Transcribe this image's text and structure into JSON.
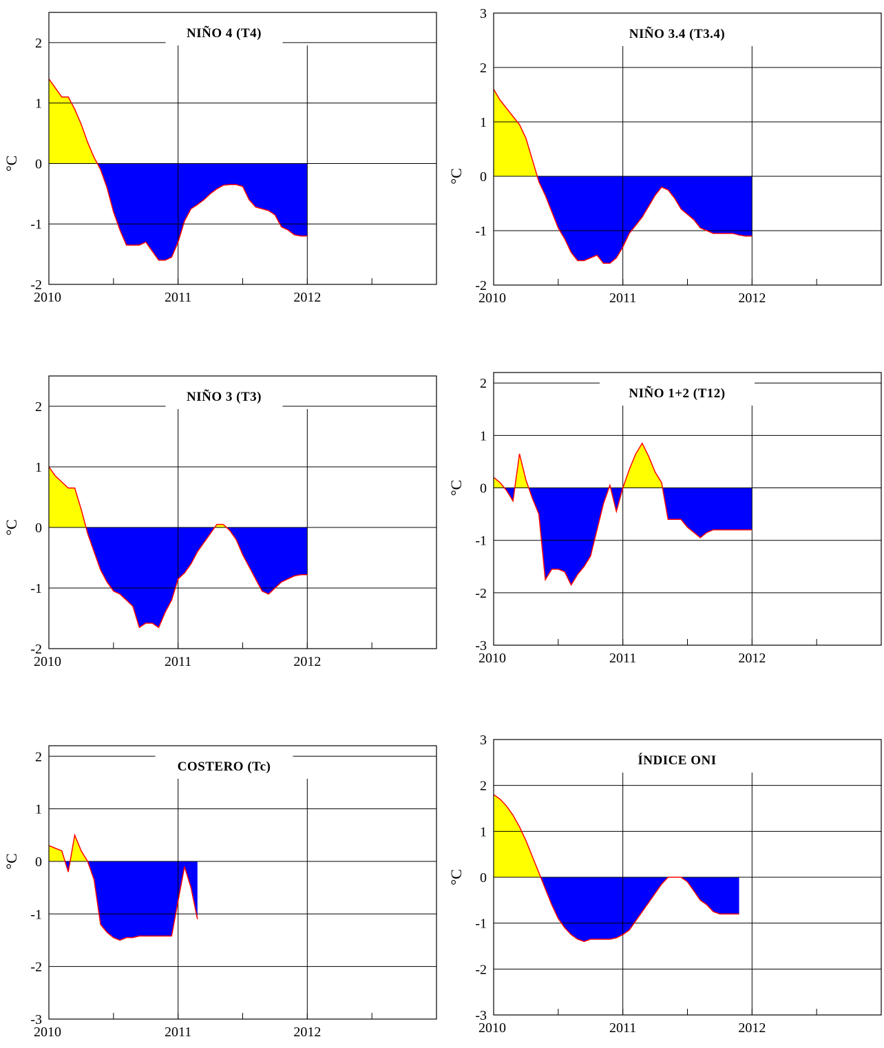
{
  "colors": {
    "positive_fill": "#ffff00",
    "negative_fill": "#0000ff",
    "line": "#ff0000",
    "grid": "#000000",
    "background": "#ffffff"
  },
  "chart_data": [
    {
      "type": "area",
      "title": "NIÑO 4 (T4)",
      "ylabel": "°C",
      "xlabel": "",
      "xlim": [
        2010,
        2013
      ],
      "ylim": [
        -2,
        2.5
      ],
      "x_ticks": [
        2010,
        2011,
        2012
      ],
      "y_ticks": [
        -2,
        -1,
        0,
        1,
        2
      ],
      "grid": true,
      "x": [
        2010.0,
        2010.05,
        2010.1,
        2010.15,
        2010.2,
        2010.25,
        2010.3,
        2010.35,
        2010.4,
        2010.45,
        2010.5,
        2010.55,
        2010.6,
        2010.65,
        2010.7,
        2010.75,
        2010.8,
        2010.85,
        2010.9,
        2010.95,
        2011.0,
        2011.05,
        2011.1,
        2011.15,
        2011.2,
        2011.25,
        2011.3,
        2011.35,
        2011.4,
        2011.45,
        2011.5,
        2011.55,
        2011.6,
        2011.65,
        2011.7,
        2011.75,
        2011.8,
        2011.85,
        2011.9,
        2011.95,
        2012.0
      ],
      "y": [
        1.4,
        1.25,
        1.1,
        1.1,
        0.9,
        0.65,
        0.35,
        0.1,
        -0.1,
        -0.4,
        -0.8,
        -1.1,
        -1.35,
        -1.35,
        -1.35,
        -1.3,
        -1.45,
        -1.6,
        -1.6,
        -1.55,
        -1.3,
        -0.95,
        -0.75,
        -0.68,
        -0.6,
        -0.5,
        -0.42,
        -0.36,
        -0.35,
        -0.35,
        -0.38,
        -0.6,
        -0.72,
        -0.75,
        -0.78,
        -0.85,
        -1.05,
        -1.1,
        -1.18,
        -1.2,
        -1.2
      ]
    },
    {
      "type": "area",
      "title": "NIÑO 3.4 (T3.4)",
      "ylabel": "°C",
      "xlabel": "",
      "xlim": [
        2010,
        2013
      ],
      "ylim": [
        -2,
        3
      ],
      "x_ticks": [
        2010,
        2011,
        2012
      ],
      "y_ticks": [
        -2,
        -1,
        0,
        1,
        2,
        3
      ],
      "grid": true,
      "x": [
        2010.0,
        2010.05,
        2010.1,
        2010.15,
        2010.2,
        2010.25,
        2010.3,
        2010.35,
        2010.4,
        2010.45,
        2010.5,
        2010.55,
        2010.6,
        2010.65,
        2010.7,
        2010.75,
        2010.8,
        2010.85,
        2010.9,
        2010.95,
        2011.0,
        2011.05,
        2011.1,
        2011.15,
        2011.2,
        2011.25,
        2011.3,
        2011.35,
        2011.4,
        2011.45,
        2011.5,
        2011.55,
        2011.6,
        2011.65,
        2011.7,
        2011.75,
        2011.8,
        2011.85,
        2011.9,
        2011.95,
        2012.0
      ],
      "y": [
        1.6,
        1.4,
        1.25,
        1.1,
        0.95,
        0.7,
        0.3,
        -0.1,
        -0.35,
        -0.65,
        -0.95,
        -1.15,
        -1.4,
        -1.55,
        -1.55,
        -1.5,
        -1.45,
        -1.6,
        -1.6,
        -1.5,
        -1.3,
        -1.05,
        -0.9,
        -0.75,
        -0.55,
        -0.35,
        -0.2,
        -0.25,
        -0.4,
        -0.6,
        -0.7,
        -0.8,
        -0.95,
        -1.0,
        -1.05,
        -1.05,
        -1.05,
        -1.05,
        -1.08,
        -1.1,
        -1.1
      ]
    },
    {
      "type": "area",
      "title": "NIÑO 3 (T3)",
      "ylabel": "°C",
      "xlabel": "",
      "xlim": [
        2010,
        2013
      ],
      "ylim": [
        -2,
        2.5
      ],
      "x_ticks": [
        2010,
        2011,
        2012
      ],
      "y_ticks": [
        -2,
        -1,
        0,
        1,
        2
      ],
      "grid": true,
      "x": [
        2010.0,
        2010.05,
        2010.1,
        2010.15,
        2010.2,
        2010.25,
        2010.3,
        2010.35,
        2010.4,
        2010.45,
        2010.5,
        2010.55,
        2010.6,
        2010.65,
        2010.7,
        2010.75,
        2010.8,
        2010.85,
        2010.9,
        2010.95,
        2011.0,
        2011.05,
        2011.1,
        2011.15,
        2011.2,
        2011.25,
        2011.3,
        2011.35,
        2011.4,
        2011.45,
        2011.5,
        2011.55,
        2011.6,
        2011.65,
        2011.7,
        2011.75,
        2011.8,
        2011.85,
        2011.9,
        2011.95,
        2012.0
      ],
      "y": [
        1.0,
        0.85,
        0.75,
        0.65,
        0.65,
        0.3,
        -0.1,
        -0.4,
        -0.7,
        -0.9,
        -1.05,
        -1.1,
        -1.2,
        -1.3,
        -1.65,
        -1.58,
        -1.58,
        -1.65,
        -1.4,
        -1.2,
        -0.85,
        -0.75,
        -0.6,
        -0.4,
        -0.25,
        -0.1,
        0.05,
        0.05,
        -0.05,
        -0.2,
        -0.45,
        -0.65,
        -0.85,
        -1.05,
        -1.1,
        -1.0,
        -0.9,
        -0.85,
        -0.8,
        -0.78,
        -0.78
      ]
    },
    {
      "type": "area",
      "title": "NIÑO 1+2 (T12)",
      "ylabel": "°C",
      "xlabel": "",
      "xlim": [
        2010,
        2013
      ],
      "ylim": [
        -3,
        2.2
      ],
      "x_ticks": [
        2010,
        2011,
        2012
      ],
      "y_ticks": [
        -3,
        -2,
        -1,
        0,
        1,
        2
      ],
      "grid": true,
      "x": [
        2010.0,
        2010.05,
        2010.1,
        2010.15,
        2010.2,
        2010.25,
        2010.3,
        2010.35,
        2010.4,
        2010.45,
        2010.5,
        2010.55,
        2010.6,
        2010.65,
        2010.7,
        2010.75,
        2010.8,
        2010.85,
        2010.9,
        2010.95,
        2011.0,
        2011.05,
        2011.1,
        2011.15,
        2011.2,
        2011.25,
        2011.3,
        2011.35,
        2011.4,
        2011.45,
        2011.5,
        2011.55,
        2011.6,
        2011.65,
        2011.7,
        2011.75,
        2011.8,
        2011.85,
        2011.9,
        2011.95,
        2012.0
      ],
      "y": [
        0.2,
        0.1,
        -0.05,
        -0.25,
        0.65,
        0.15,
        -0.2,
        -0.5,
        -1.75,
        -1.55,
        -1.55,
        -1.6,
        -1.85,
        -1.65,
        -1.5,
        -1.3,
        -0.8,
        -0.3,
        0.05,
        -0.45,
        0.0,
        0.35,
        0.65,
        0.85,
        0.6,
        0.3,
        0.1,
        -0.6,
        -0.6,
        -0.6,
        -0.75,
        -0.85,
        -0.95,
        -0.85,
        -0.8,
        -0.8,
        -0.8,
        -0.8,
        -0.8,
        -0.8,
        -0.8
      ]
    },
    {
      "type": "area",
      "title": "COSTERO (Tc)",
      "ylabel": "°C",
      "xlabel": "",
      "xlim": [
        2010,
        2013
      ],
      "ylim": [
        -3,
        2.2
      ],
      "x_ticks": [
        2010,
        2011,
        2012
      ],
      "y_ticks": [
        -3,
        -2,
        -1,
        0,
        1,
        2
      ],
      "grid": true,
      "x": [
        2010.0,
        2010.05,
        2010.1,
        2010.15,
        2010.2,
        2010.25,
        2010.3,
        2010.35,
        2010.4,
        2010.45,
        2010.5,
        2010.55,
        2010.6,
        2010.65,
        2010.7,
        2010.75,
        2010.8,
        2010.85,
        2010.9,
        2010.95,
        2011.0,
        2011.05,
        2011.1,
        2011.15
      ],
      "y": [
        0.3,
        0.25,
        0.2,
        -0.2,
        0.5,
        0.2,
        0.0,
        -0.35,
        -1.2,
        -1.35,
        -1.45,
        -1.5,
        -1.45,
        -1.45,
        -1.42,
        -1.42,
        -1.42,
        -1.42,
        -1.42,
        -1.42,
        -0.75,
        -0.1,
        -0.5,
        -1.1
      ]
    },
    {
      "type": "area",
      "title": "ÍNDICE ONI",
      "ylabel": "°C",
      "xlabel": "",
      "xlim": [
        2010,
        2013
      ],
      "ylim": [
        -3,
        3
      ],
      "x_ticks": [
        2010,
        2011,
        2012
      ],
      "y_ticks": [
        -3,
        -2,
        -1,
        0,
        1,
        2,
        3
      ],
      "grid": true,
      "x": [
        2010.0,
        2010.05,
        2010.1,
        2010.15,
        2010.2,
        2010.25,
        2010.3,
        2010.35,
        2010.4,
        2010.45,
        2010.5,
        2010.55,
        2010.6,
        2010.65,
        2010.7,
        2010.75,
        2010.8,
        2010.85,
        2010.9,
        2010.95,
        2011.0,
        2011.05,
        2011.1,
        2011.15,
        2011.2,
        2011.25,
        2011.3,
        2011.35,
        2011.4,
        2011.45,
        2011.5,
        2011.55,
        2011.6,
        2011.65,
        2011.7,
        2011.75,
        2011.8,
        2011.85,
        2011.9
      ],
      "y": [
        1.8,
        1.7,
        1.55,
        1.35,
        1.1,
        0.8,
        0.45,
        0.1,
        -0.25,
        -0.6,
        -0.9,
        -1.1,
        -1.25,
        -1.35,
        -1.4,
        -1.35,
        -1.35,
        -1.35,
        -1.35,
        -1.32,
        -1.25,
        -1.15,
        -0.95,
        -0.75,
        -0.55,
        -0.35,
        -0.15,
        0.0,
        0.0,
        0.0,
        -0.1,
        -0.3,
        -0.5,
        -0.6,
        -0.75,
        -0.8,
        -0.8,
        -0.8,
        -0.8
      ]
    }
  ]
}
